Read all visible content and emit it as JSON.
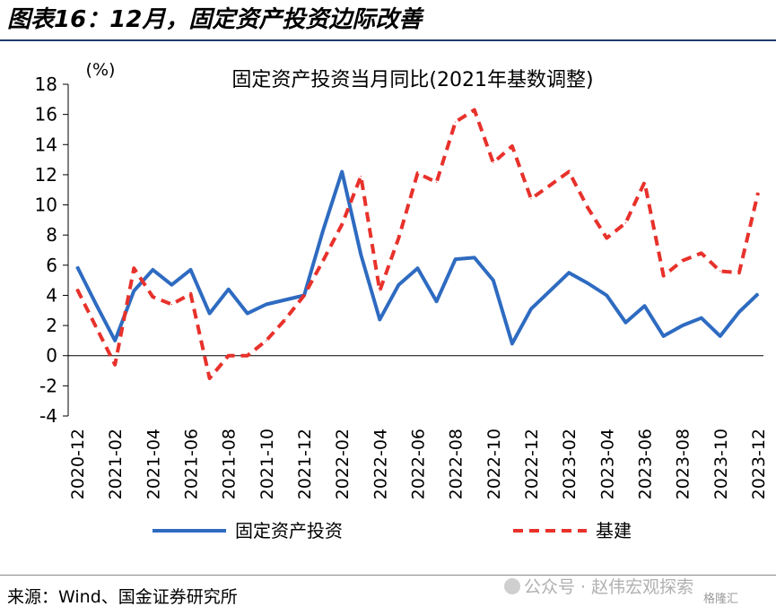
{
  "figure": {
    "title": "图表16：12月，固定资产投资边际改善",
    "source": "来源：Wind、国金证券研究所",
    "watermark": "公众号 · 赵伟宏观探索",
    "watermark_icon": "wechat-icon",
    "badge": "格隆汇"
  },
  "chart_data": {
    "type": "line",
    "title": "固定资产投资当月同比(2021年基数调整)",
    "unit_label": "(%)",
    "ylim": [
      -4,
      18
    ],
    "yticks": [
      "18",
      "16",
      "14",
      "12",
      "10",
      "8",
      "6",
      "4",
      "2",
      "0",
      "-2",
      "-4"
    ],
    "grid": false,
    "legend_position": "bottom",
    "x": [
      "2020-12",
      "2021-01",
      "2021-02",
      "2021-03",
      "2021-04",
      "2021-05",
      "2021-06",
      "2021-07",
      "2021-08",
      "2021-09",
      "2021-10",
      "2021-11",
      "2021-12",
      "2022-01",
      "2022-02",
      "2022-03",
      "2022-04",
      "2022-05",
      "2022-06",
      "2022-07",
      "2022-08",
      "2022-09",
      "2022-10",
      "2022-11",
      "2022-12",
      "2023-01",
      "2023-02",
      "2023-03",
      "2023-04",
      "2023-05",
      "2023-06",
      "2023-07",
      "2023-08",
      "2023-09",
      "2023-10",
      "2023-11",
      "2023-12"
    ],
    "xtick_labels": [
      "2020-12",
      "2021-02",
      "2021-04",
      "2021-06",
      "2021-08",
      "2021-10",
      "2021-12",
      "2022-02",
      "2022-04",
      "2022-06",
      "2022-08",
      "2022-10",
      "2022-12",
      "2023-02",
      "2023-04",
      "2023-06",
      "2023-08",
      "2023-10",
      "2023-12"
    ],
    "series": [
      {
        "name": "固定资产投资",
        "color": "#2e6bc1",
        "style": "solid",
        "values": [
          5.9,
          3.4,
          1.0,
          4.3,
          5.7,
          4.7,
          5.7,
          2.8,
          4.4,
          2.8,
          3.4,
          3.7,
          4.0,
          8.3,
          12.2,
          6.7,
          2.4,
          4.7,
          5.8,
          3.6,
          6.4,
          6.5,
          5.0,
          0.8,
          3.1,
          4.3,
          5.5,
          4.8,
          4.0,
          2.2,
          3.3,
          1.3,
          2.0,
          2.5,
          1.3,
          2.9,
          4.1
        ]
      },
      {
        "name": "基建",
        "color": "#e8312b",
        "style": "dashed",
        "values": [
          4.4,
          1.9,
          -0.6,
          5.8,
          3.9,
          3.4,
          4.1,
          -1.5,
          0.0,
          0.0,
          1.0,
          2.4,
          4.0,
          6.3,
          8.7,
          11.9,
          4.3,
          7.8,
          12.1,
          11.5,
          15.5,
          16.3,
          12.8,
          13.9,
          10.4,
          11.3,
          12.2,
          9.8,
          7.8,
          8.8,
          11.5,
          5.3,
          6.3,
          6.8,
          5.6,
          5.5,
          10.8
        ]
      }
    ]
  }
}
